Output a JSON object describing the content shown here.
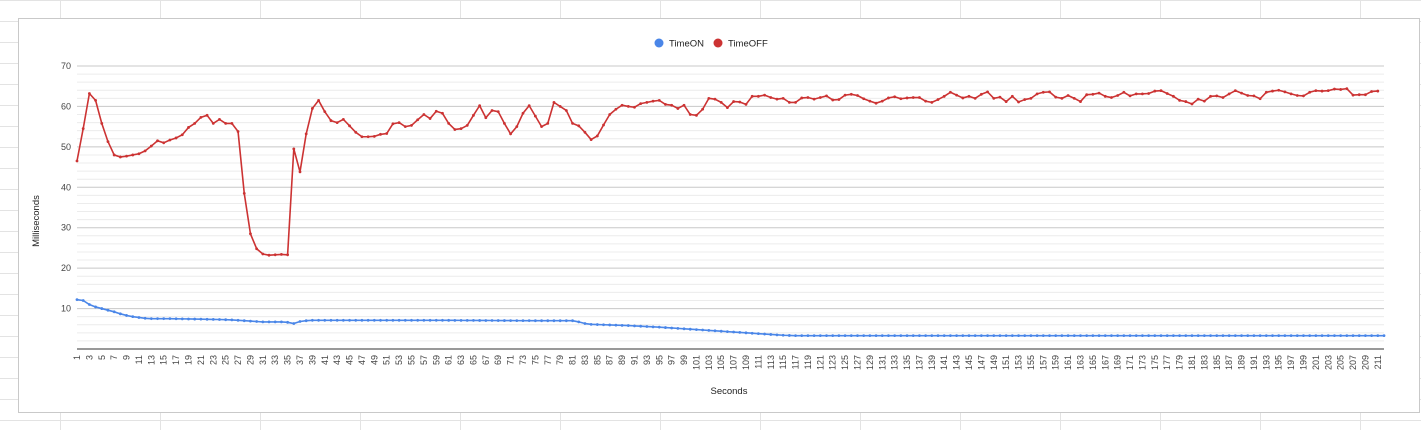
{
  "chart_data": {
    "type": "line",
    "xlabel": "Seconds",
    "ylabel": "Milliseconds",
    "ylim": [
      0,
      70
    ],
    "y_ticks": [
      10,
      20,
      30,
      40,
      50,
      60,
      70
    ],
    "x_range": [
      1,
      212
    ],
    "x_tick_step": 2,
    "grid": true,
    "legend_position": "top-center",
    "series": [
      {
        "name": "TimeON",
        "color": "#4a86e8",
        "points": [
          [
            1,
            12.2
          ],
          [
            2,
            12.0
          ],
          [
            3,
            11.0
          ],
          [
            4,
            10.4
          ],
          [
            5,
            10.0
          ],
          [
            6,
            9.6
          ],
          [
            7,
            9.2
          ],
          [
            8,
            8.7
          ],
          [
            9,
            8.3
          ],
          [
            10,
            8.0
          ],
          [
            11,
            7.8
          ],
          [
            12,
            7.6
          ],
          [
            13,
            7.5
          ],
          [
            14,
            7.5
          ],
          [
            16,
            7.5
          ],
          [
            20,
            7.4
          ],
          [
            24,
            7.3
          ],
          [
            26,
            7.2
          ],
          [
            28,
            7.0
          ],
          [
            30,
            6.8
          ],
          [
            31,
            6.7
          ],
          [
            34,
            6.7
          ],
          [
            35,
            6.6
          ],
          [
            36,
            6.3
          ],
          [
            37,
            6.8
          ],
          [
            38,
            7.0
          ],
          [
            39,
            7.1
          ],
          [
            45,
            7.1
          ],
          [
            60,
            7.1
          ],
          [
            75,
            7.0
          ],
          [
            81,
            7.0
          ],
          [
            82,
            6.7
          ],
          [
            83,
            6.3
          ],
          [
            84,
            6.1
          ],
          [
            90,
            5.8
          ],
          [
            95,
            5.4
          ],
          [
            100,
            4.9
          ],
          [
            105,
            4.4
          ],
          [
            110,
            3.9
          ],
          [
            113,
            3.6
          ],
          [
            115,
            3.4
          ],
          [
            117,
            3.3
          ],
          [
            150,
            3.3
          ],
          [
            180,
            3.3
          ],
          [
            212,
            3.3
          ]
        ]
      },
      {
        "name": "TimeOFF",
        "color": "#cc3333",
        "points": [
          [
            1,
            46.5
          ],
          [
            2,
            54.5
          ],
          [
            3,
            63.2
          ],
          [
            4,
            61.5
          ],
          [
            5,
            55.8
          ],
          [
            6,
            51.3
          ],
          [
            7,
            48.0
          ],
          [
            8,
            47.5
          ],
          [
            9,
            47.7
          ],
          [
            10,
            48.0
          ],
          [
            11,
            48.3
          ],
          [
            12,
            49.0
          ],
          [
            13,
            50.2
          ],
          [
            14,
            51.5
          ],
          [
            15,
            51.0
          ],
          [
            16,
            51.7
          ],
          [
            17,
            52.2
          ],
          [
            18,
            53.0
          ],
          [
            19,
            54.8
          ],
          [
            20,
            55.8
          ],
          [
            21,
            57.3
          ],
          [
            22,
            57.8
          ],
          [
            23,
            55.8
          ],
          [
            24,
            56.8
          ],
          [
            25,
            55.8
          ],
          [
            26,
            55.8
          ],
          [
            27,
            53.8
          ],
          [
            28,
            38.5
          ],
          [
            29,
            28.5
          ],
          [
            30,
            24.8
          ],
          [
            31,
            23.5
          ],
          [
            32,
            23.2
          ],
          [
            33,
            23.3
          ],
          [
            34,
            23.4
          ],
          [
            35,
            23.3
          ],
          [
            36,
            49.5
          ],
          [
            37,
            43.8
          ],
          [
            38,
            53.2
          ],
          [
            39,
            59.5
          ],
          [
            40,
            61.5
          ],
          [
            41,
            58.7
          ],
          [
            42,
            56.5
          ],
          [
            43,
            56.0
          ],
          [
            44,
            56.8
          ],
          [
            45,
            55.2
          ],
          [
            46,
            53.6
          ],
          [
            47,
            52.5
          ],
          [
            48,
            52.5
          ],
          [
            49,
            52.6
          ],
          [
            50,
            53.1
          ],
          [
            51,
            53.3
          ],
          [
            52,
            55.7
          ],
          [
            53,
            56.0
          ],
          [
            54,
            55.0
          ],
          [
            55,
            55.3
          ],
          [
            56,
            56.7
          ],
          [
            57,
            58.0
          ],
          [
            58,
            57.0
          ],
          [
            59,
            58.8
          ],
          [
            60,
            58.3
          ],
          [
            61,
            55.8
          ],
          [
            62,
            54.3
          ],
          [
            63,
            54.5
          ],
          [
            64,
            55.3
          ],
          [
            65,
            57.8
          ],
          [
            66,
            60.2
          ],
          [
            67,
            57.2
          ],
          [
            68,
            59.0
          ],
          [
            69,
            58.7
          ],
          [
            70,
            55.8
          ],
          [
            71,
            53.2
          ],
          [
            72,
            55.0
          ],
          [
            73,
            58.3
          ],
          [
            74,
            60.2
          ],
          [
            75,
            57.6
          ],
          [
            76,
            55.0
          ],
          [
            77,
            55.8
          ],
          [
            78,
            61.0
          ],
          [
            79,
            60.0
          ],
          [
            80,
            59.0
          ],
          [
            81,
            55.8
          ],
          [
            82,
            55.2
          ],
          [
            83,
            53.6
          ],
          [
            84,
            51.8
          ],
          [
            85,
            52.7
          ],
          [
            86,
            55.4
          ],
          [
            87,
            58.0
          ],
          [
            88,
            59.3
          ],
          [
            89,
            60.3
          ],
          [
            90,
            60.0
          ],
          [
            91,
            59.8
          ],
          [
            92,
            60.7
          ],
          [
            93,
            61.0
          ],
          [
            94,
            61.3
          ],
          [
            95,
            61.5
          ],
          [
            96,
            60.5
          ],
          [
            97,
            60.3
          ],
          [
            98,
            59.5
          ],
          [
            99,
            60.3
          ],
          [
            100,
            58.0
          ],
          [
            101,
            57.8
          ],
          [
            102,
            59.3
          ],
          [
            103,
            62.0
          ],
          [
            104,
            61.8
          ],
          [
            105,
            61.0
          ],
          [
            106,
            59.7
          ],
          [
            107,
            61.2
          ],
          [
            108,
            61.1
          ],
          [
            109,
            60.5
          ],
          [
            110,
            62.5
          ],
          [
            111,
            62.5
          ],
          [
            112,
            62.8
          ],
          [
            113,
            62.2
          ],
          [
            114,
            61.8
          ],
          [
            115,
            62.0
          ],
          [
            116,
            61.0
          ],
          [
            117,
            61.0
          ],
          [
            118,
            62.1
          ],
          [
            119,
            62.2
          ],
          [
            120,
            61.8
          ],
          [
            121,
            62.2
          ],
          [
            122,
            62.6
          ],
          [
            123,
            61.6
          ],
          [
            124,
            61.7
          ],
          [
            125,
            62.8
          ],
          [
            126,
            63.0
          ],
          [
            127,
            62.7
          ],
          [
            128,
            61.9
          ],
          [
            129,
            61.3
          ],
          [
            130,
            60.8
          ],
          [
            131,
            61.3
          ],
          [
            132,
            62.1
          ],
          [
            133,
            62.4
          ],
          [
            134,
            61.9
          ],
          [
            135,
            62.1
          ],
          [
            136,
            62.2
          ],
          [
            137,
            62.2
          ],
          [
            138,
            61.3
          ],
          [
            139,
            61.0
          ],
          [
            140,
            61.7
          ],
          [
            141,
            62.5
          ],
          [
            142,
            63.5
          ],
          [
            143,
            62.8
          ],
          [
            144,
            62.1
          ],
          [
            145,
            62.5
          ],
          [
            146,
            62.0
          ],
          [
            147,
            63.0
          ],
          [
            148,
            63.6
          ],
          [
            149,
            62.0
          ],
          [
            150,
            62.3
          ],
          [
            151,
            61.2
          ],
          [
            152,
            62.5
          ],
          [
            153,
            61.1
          ],
          [
            154,
            61.7
          ],
          [
            155,
            62.0
          ],
          [
            156,
            63.1
          ],
          [
            157,
            63.5
          ],
          [
            158,
            63.6
          ],
          [
            159,
            62.3
          ],
          [
            160,
            62.0
          ],
          [
            161,
            62.7
          ],
          [
            162,
            62.0
          ],
          [
            163,
            61.2
          ],
          [
            164,
            62.9
          ],
          [
            165,
            63.0
          ],
          [
            166,
            63.3
          ],
          [
            167,
            62.5
          ],
          [
            168,
            62.2
          ],
          [
            169,
            62.7
          ],
          [
            170,
            63.5
          ],
          [
            171,
            62.6
          ],
          [
            172,
            63.1
          ],
          [
            173,
            63.1
          ],
          [
            174,
            63.2
          ],
          [
            175,
            63.8
          ],
          [
            176,
            63.9
          ],
          [
            177,
            63.2
          ],
          [
            178,
            62.5
          ],
          [
            179,
            61.5
          ],
          [
            180,
            61.2
          ],
          [
            181,
            60.6
          ],
          [
            182,
            61.8
          ],
          [
            183,
            61.3
          ],
          [
            184,
            62.5
          ],
          [
            185,
            62.6
          ],
          [
            186,
            62.2
          ],
          [
            187,
            63.1
          ],
          [
            188,
            63.9
          ],
          [
            189,
            63.3
          ],
          [
            190,
            62.7
          ],
          [
            191,
            62.6
          ],
          [
            192,
            61.9
          ],
          [
            193,
            63.5
          ],
          [
            194,
            63.8
          ],
          [
            195,
            64.0
          ],
          [
            196,
            63.6
          ],
          [
            197,
            63.1
          ],
          [
            198,
            62.7
          ],
          [
            199,
            62.6
          ],
          [
            200,
            63.5
          ],
          [
            201,
            63.9
          ],
          [
            202,
            63.8
          ],
          [
            203,
            63.9
          ],
          [
            204,
            64.3
          ],
          [
            205,
            64.2
          ],
          [
            206,
            64.4
          ],
          [
            207,
            62.8
          ],
          [
            208,
            62.9
          ],
          [
            209,
            62.9
          ],
          [
            210,
            63.7
          ],
          [
            211,
            63.8
          ]
        ]
      }
    ]
  }
}
